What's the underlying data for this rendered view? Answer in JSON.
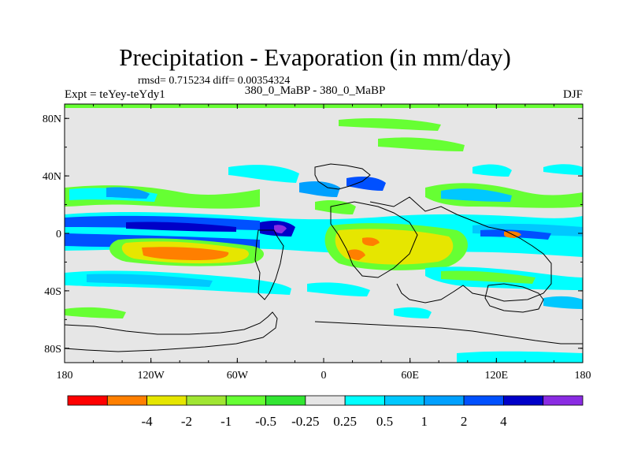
{
  "header": {
    "title": "Precipitation - Evaporation (in mm/day)",
    "stats": "rmsd= 0.715234 diff= 0.00354324",
    "experiment": "Expt = teYey-teYdy1",
    "comparison": "380_0_MaBP - 380_0_MaBP",
    "season": "DJF"
  },
  "chart_data": {
    "type": "heatmap",
    "title": "Precipitation - Evaporation (in mm/day)",
    "x_ticks": [
      {
        "value": -180,
        "label": "180"
      },
      {
        "value": -120,
        "label": "120W"
      },
      {
        "value": -60,
        "label": "60W"
      },
      {
        "value": 0,
        "label": "0"
      },
      {
        "value": 60,
        "label": "60E"
      },
      {
        "value": 120,
        "label": "120E"
      },
      {
        "value": 180,
        "label": "180"
      }
    ],
    "y_ticks": [
      {
        "value": 80,
        "label": "80N"
      },
      {
        "value": 40,
        "label": "40N"
      },
      {
        "value": 0,
        "label": "0"
      },
      {
        "value": -40,
        "label": "40S"
      },
      {
        "value": -80,
        "label": "80S"
      }
    ],
    "xlim": [
      -180,
      180
    ],
    "ylim": [
      -90,
      90
    ],
    "colorbar": {
      "colors": [
        "#ff0000",
        "#ff7f00",
        "#e6e600",
        "#a0e632",
        "#66ff33",
        "#32e632",
        "#e6e6e6",
        "#00ffff",
        "#00c8ff",
        "#00a0ff",
        "#0050ff",
        "#0000c8",
        "#8a2be2"
      ],
      "labels": [
        "-4",
        "-2",
        "-1",
        "-0.5",
        "-0.25",
        "0.25",
        "0.5",
        "1",
        "2",
        "4"
      ],
      "boundaries": [
        -4,
        -2,
        -1,
        -0.5,
        -0.25,
        0.25,
        0.5,
        1,
        2,
        4
      ]
    }
  }
}
